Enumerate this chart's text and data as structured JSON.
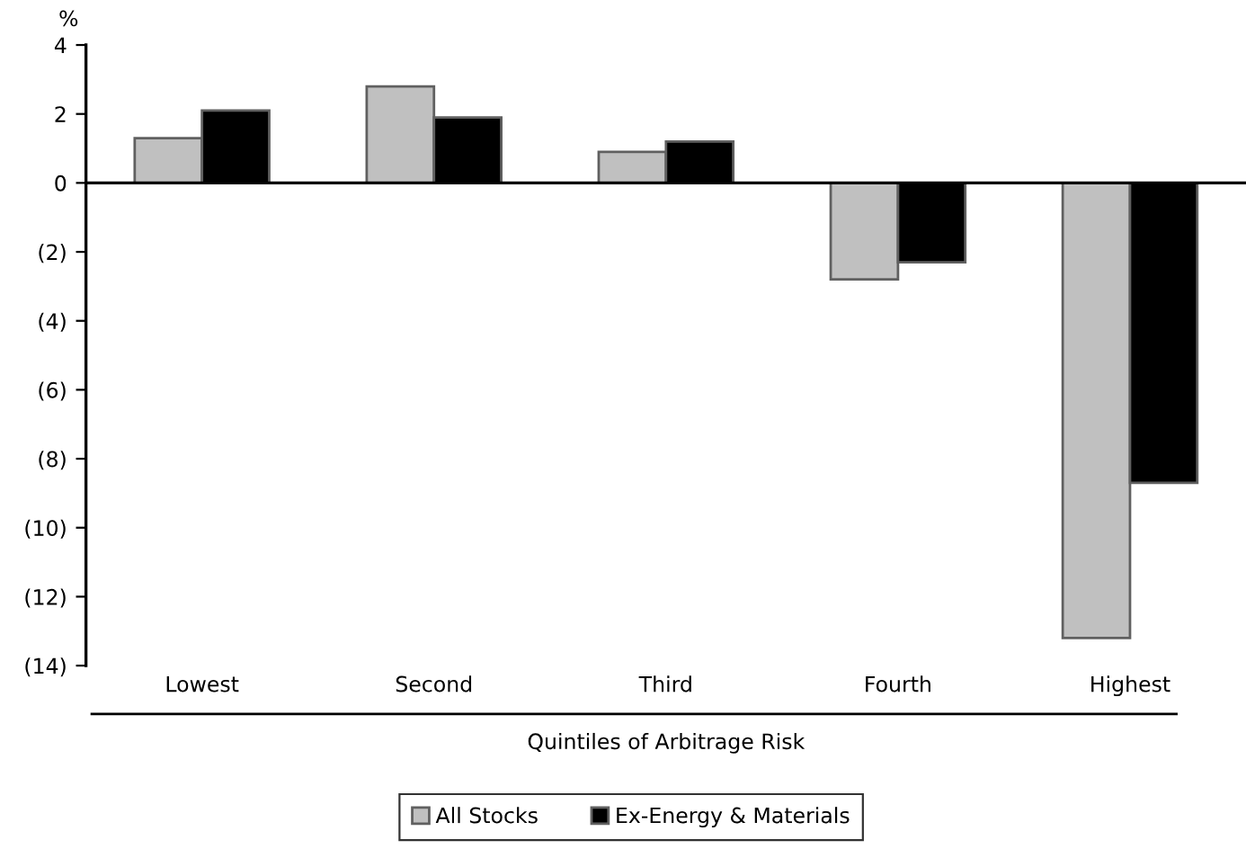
{
  "chart_data": {
    "type": "bar",
    "categories": [
      "Lowest",
      "Second",
      "Third",
      "Fourth",
      "Highest"
    ],
    "series": [
      {
        "name": "All Stocks",
        "color": "#c0c0c0",
        "values": [
          1.3,
          2.8,
          0.9,
          -2.8,
          -13.2
        ]
      },
      {
        "name": "Ex-Energy & Materials",
        "color": "#000000",
        "values": [
          2.1,
          1.9,
          1.2,
          -2.3,
          -8.7
        ]
      }
    ],
    "xlabel": "Quintiles of Arbitrage Risk",
    "ylabel": "%",
    "ylim": [
      -14,
      4
    ],
    "yticks": [
      4,
      2,
      0,
      {
        "value": -2,
        "label": "(2)"
      },
      {
        "value": -4,
        "label": "(4)"
      },
      {
        "value": -6,
        "label": "(6)"
      },
      {
        "value": -8,
        "label": "(8)"
      },
      {
        "value": -10,
        "label": "(10)"
      },
      {
        "value": -12,
        "label": "(12)"
      },
      {
        "value": -14,
        "label": "(14)"
      }
    ],
    "legend": "bottom"
  }
}
